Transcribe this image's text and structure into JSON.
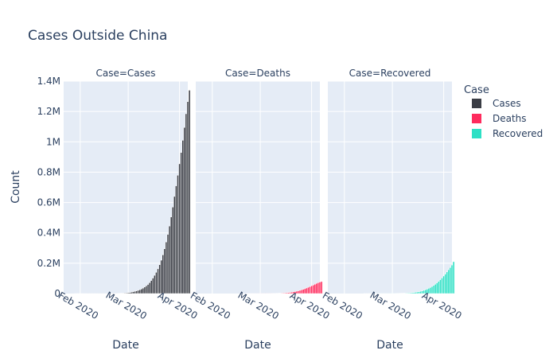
{
  "chart_data": {
    "type": "bar",
    "title": "Cases Outside China",
    "ylabel": "Count",
    "xlabel": "Date",
    "ylim": [
      0,
      1400000
    ],
    "yticks": [
      {
        "value": 0,
        "label": "0"
      },
      {
        "value": 200000,
        "label": "0.2M"
      },
      {
        "value": 400000,
        "label": "0.4M"
      },
      {
        "value": 600000,
        "label": "0.6M"
      },
      {
        "value": 800000,
        "label": "0.8M"
      },
      {
        "value": 1000000,
        "label": "1M"
      },
      {
        "value": 1200000,
        "label": "1.2M"
      },
      {
        "value": 1400000,
        "label": "1.4M"
      }
    ],
    "xrange": [
      "2020-01-22",
      "2020-04-06"
    ],
    "xticks": [
      {
        "value": "2020-02-01",
        "label": "Feb 2020"
      },
      {
        "value": "2020-03-01",
        "label": "Mar 2020"
      },
      {
        "value": "2020-04-01",
        "label": "Apr 2020"
      }
    ],
    "legend": {
      "title": "Case",
      "position": "right"
    },
    "grid": true,
    "facets": [
      {
        "label": "Case=Cases",
        "name": "Cases",
        "color": "#3a3d45",
        "start_date": "2020-01-22",
        "values": [
          1,
          2,
          3,
          5,
          10,
          13,
          20,
          27,
          40,
          50,
          70,
          90,
          110,
          130,
          150,
          170,
          185,
          200,
          215,
          230,
          250,
          270,
          290,
          310,
          330,
          350,
          380,
          420,
          470,
          550,
          650,
          800,
          1000,
          1300,
          1700,
          2200,
          2800,
          3500,
          4500,
          5500,
          7000,
          9000,
          11500,
          14000,
          17500,
          21000,
          25000,
          30000,
          36000,
          43000,
          51000,
          60000,
          72000,
          86000,
          102000,
          120000,
          140000,
          163000,
          190000,
          220000,
          255000,
          295000,
          340000,
          390000,
          445000,
          505000,
          570000,
          640000,
          710000,
          780000,
          855000,
          930000,
          1010000,
          1095000,
          1185000,
          1265000,
          1340000
        ]
      },
      {
        "label": "Case=Deaths",
        "name": "Deaths",
        "color": "#fe2b5d",
        "start_date": "2020-01-22",
        "values": [
          0,
          0,
          0,
          0,
          0,
          0,
          0,
          0,
          0,
          0,
          0,
          0,
          0,
          0,
          0,
          0,
          1,
          1,
          1,
          1,
          1,
          2,
          2,
          3,
          4,
          6,
          8,
          10,
          15,
          20,
          30,
          40,
          55,
          70,
          90,
          115,
          140,
          170,
          210,
          260,
          320,
          390,
          470,
          570,
          690,
          830,
          1000,
          1200,
          1450,
          1750,
          2100,
          2550,
          3100,
          3750,
          4500,
          5400,
          6500,
          7800,
          9300,
          11000,
          13000,
          15300,
          18000,
          21000,
          24500,
          28000,
          32000,
          36500,
          41000,
          46000,
          51000,
          56000,
          61500,
          67000,
          72000,
          76000,
          79000
        ]
      },
      {
        "label": "Case=Recovered",
        "name": "Recovered",
        "color": "#2de0c5",
        "start_date": "2020-01-22",
        "values": [
          0,
          0,
          0,
          0,
          0,
          0,
          0,
          0,
          0,
          1,
          1,
          2,
          3,
          4,
          5,
          6,
          8,
          10,
          12,
          15,
          18,
          22,
          27,
          33,
          40,
          50,
          60,
          75,
          90,
          110,
          130,
          160,
          190,
          230,
          280,
          340,
          410,
          500,
          600,
          720,
          860,
          1000,
          1200,
          1450,
          1750,
          2100,
          2500,
          3000,
          3600,
          4300,
          5100,
          6000,
          7100,
          8400,
          10000,
          12000,
          14500,
          17500,
          21000,
          25000,
          29500,
          34500,
          40000,
          46500,
          53500,
          61500,
          70500,
          80500,
          91500,
          103000,
          115500,
          128500,
          142500,
          157000,
          172000,
          188000,
          210000
        ]
      }
    ]
  }
}
